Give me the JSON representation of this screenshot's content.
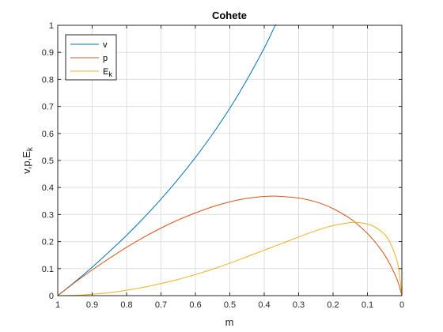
{
  "chart_data": {
    "type": "line",
    "title": "Cohete",
    "xlabel": "m",
    "ylabel": "v,p,E",
    "ylabel_sub": "k",
    "xlim": [
      1,
      0
    ],
    "ylim": [
      0,
      1
    ],
    "x_reversed": true,
    "grid": true,
    "legend_position": "top-left",
    "x_ticks": [
      1,
      0.9,
      0.8,
      0.7,
      0.6,
      0.5,
      0.4,
      0.3,
      0.2,
      0.1,
      0
    ],
    "x_tick_labels": [
      "1",
      "0.9",
      "0.8",
      "0.7",
      "0.6",
      "0.5",
      "0.4",
      "0.3",
      "0.2",
      "0.1",
      "0"
    ],
    "y_ticks": [
      0,
      0.1,
      0.2,
      0.3,
      0.4,
      0.5,
      0.6,
      0.7,
      0.8,
      0.9,
      1
    ],
    "y_tick_labels": [
      "0",
      "0.1",
      "0.2",
      "0.3",
      "0.4",
      "0.5",
      "0.6",
      "0.7",
      "0.8",
      "0.9",
      "1"
    ],
    "x": [
      1.0,
      0.95,
      0.9,
      0.85,
      0.8,
      0.75,
      0.7,
      0.65,
      0.6,
      0.55,
      0.5,
      0.45,
      0.4,
      0.37,
      0.35,
      0.3,
      0.25,
      0.2,
      0.15,
      0.13,
      0.1,
      0.08,
      0.06,
      0.04,
      0.02,
      0.01,
      0.0
    ],
    "series": [
      {
        "name": "v",
        "color": "#0072bd",
        "values": [
          0.0,
          0.051,
          0.105,
          0.163,
          0.223,
          0.288,
          0.357,
          0.431,
          0.511,
          0.598,
          0.693,
          0.799,
          0.916,
          0.994,
          null,
          null,
          null,
          null,
          null,
          null,
          null,
          null,
          null,
          null,
          null,
          null,
          null
        ]
      },
      {
        "name": "p",
        "color": "#d95319",
        "values": [
          0.0,
          0.049,
          0.095,
          0.138,
          0.179,
          0.216,
          0.25,
          0.28,
          0.306,
          0.329,
          0.347,
          0.36,
          0.367,
          0.368,
          0.367,
          0.361,
          0.347,
          0.322,
          0.285,
          0.265,
          0.23,
          0.202,
          0.169,
          0.129,
          0.078,
          0.046,
          0.0
        ]
      },
      {
        "name": "E",
        "name_sub": "k",
        "color": "#edb120",
        "values": [
          0.0,
          0.001,
          0.005,
          0.011,
          0.02,
          0.031,
          0.045,
          0.06,
          0.078,
          0.098,
          0.12,
          0.144,
          0.168,
          0.183,
          0.192,
          0.217,
          0.24,
          0.259,
          0.27,
          0.271,
          0.265,
          0.255,
          0.238,
          0.21,
          0.153,
          0.106,
          0.0
        ]
      }
    ]
  }
}
